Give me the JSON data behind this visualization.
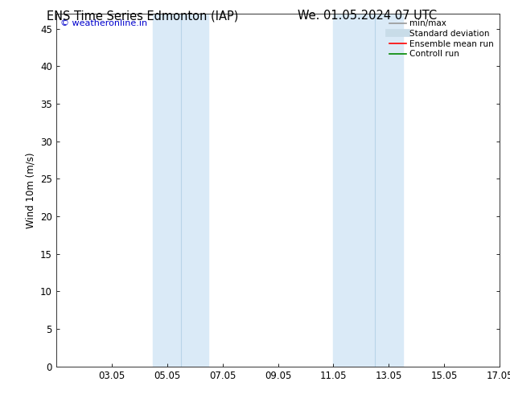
{
  "title_left": "ENS Time Series Edmonton (IAP)",
  "title_right": "We. 01.05.2024 07 UTC",
  "ylabel": "Wind 10m (m/s)",
  "ylim": [
    0,
    47
  ],
  "yticks": [
    0,
    5,
    10,
    15,
    20,
    25,
    30,
    35,
    40,
    45
  ],
  "xlim_start": 0.0,
  "xlim_end": 16.0,
  "xtick_positions": [
    2,
    4,
    6,
    8,
    10,
    12,
    14,
    16
  ],
  "xtick_labels": [
    "03.05",
    "05.05",
    "07.05",
    "09.05",
    "11.05",
    "13.05",
    "15.05",
    "17.05"
  ],
  "shade_bands": [
    {
      "xmin": 3.5,
      "xmax": 5.5,
      "color": "#daeaf7"
    },
    {
      "xmin": 10.0,
      "xmax": 12.5,
      "color": "#daeaf7"
    }
  ],
  "vertical_lines": [
    {
      "x": 4.5,
      "color": "#b8d4e8",
      "lw": 0.8
    },
    {
      "x": 11.5,
      "color": "#b8d4e8",
      "lw": 0.8
    }
  ],
  "watermark": "© weatheronline.in",
  "watermark_color": "#0000cc",
  "background_color": "#ffffff",
  "legend_items": [
    {
      "label": "min/max",
      "color": "#999999",
      "lw": 1.2,
      "ls": "-"
    },
    {
      "label": "Standard deviation",
      "color": "#c8dce8",
      "lw": 7,
      "ls": "-"
    },
    {
      "label": "Ensemble mean run",
      "color": "#ff0000",
      "lw": 1.2,
      "ls": "-"
    },
    {
      "label": "Controll run",
      "color": "#008800",
      "lw": 1.2,
      "ls": "-"
    }
  ],
  "title_fontsize": 10.5,
  "tick_fontsize": 8.5,
  "ylabel_fontsize": 8.5,
  "legend_fontsize": 7.5
}
